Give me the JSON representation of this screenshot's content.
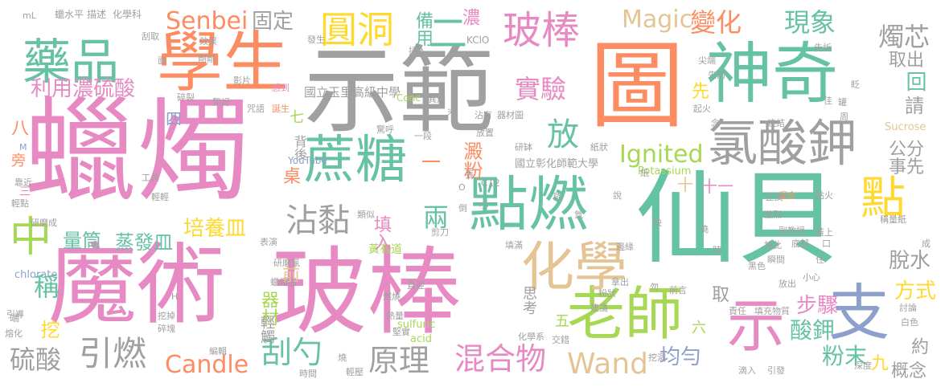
{
  "palette": {
    "gray": "#a0a0a0",
    "pink": "#e78ac3",
    "green": "#66c2a5",
    "orange": "#fc8d62",
    "blue": "#8da0cb",
    "lime": "#a6d854",
    "yellow": "#ffd92f",
    "tan": "#e5c494"
  },
  "words": {
    "lazhu": "蠟燭",
    "shifan": "示範",
    "tu": "圖",
    "mofa": "魔術",
    "bangbang": "玻棒",
    "xianbei": "仙貝",
    "shensqi": "神奇",
    "xuesheng": "學生",
    "laoshi": "老師",
    "yaopin": "藥品",
    "zhetang": "蔗糖",
    "dianran": "點燃",
    "lvsuanjia": "氯酸鉀",
    "huaxue": "化學",
    "yuandong": "圓洞",
    "bangbang2": "玻棒",
    "shi2": "示",
    "zhi": "支",
    "dian": "點",
    "zhong": "中",
    "zhanzhan": "沾黏",
    "liyong": "利用濃硫酸",
    "hunhewu": "混合物",
    "guashao": "刮勺",
    "yuanli": "原理",
    "yinran": "引燃",
    "liusuan": "硫酸",
    "candle": "Candle",
    "wand": "Wand",
    "magic": "Magic",
    "senbei": "Senbei",
    "ignited": "Ignited",
    "bianhua": "變化",
    "xianxiang": "現象",
    "shiyan": "實驗",
    "zhuxin": "燭芯",
    "fang": "放",
    "dianfen": "澱粉",
    "jiemudianfen": "粉末",
    "peiyangmin": "培養皿",
    "zhengfamin": "蒸發皿",
    "liangtong": "量筒",
    "cheng": "稱",
    "wa": "挖",
    "qicai": "器材",
    "qingchu": "輕觸",
    "qian": "前",
    "tianru": "填入",
    "liang": "兩",
    "beihou": "背後",
    "sikao": "思考",
    "qi": "取",
    "buzhou": "步驟",
    "suanjia": "酸鉀",
    "fangshi": "方式",
    "tuoshui": "脫水",
    "gongfen": "公分",
    "shixian": "事先",
    "qing": "請",
    "hui": "回",
    "quchu": "取出",
    "junyun": "均勻",
    "jiu": "九",
    "gainian": "概念",
    "yue": "約",
    "nong": "濃",
    "beiyong": "備用",
    "guding": "固定",
    "yi": "一",
    "er": "二",
    "san": "三",
    "si": "四",
    "wu": "五",
    "liu": "六",
    "qi7": "七",
    "ba": "八",
    "shi10": "十",
    "shiyi": "十一",
    "zhuo": "桌",
    "xian": "先",
    "pang": "旁",
    "school": "國立玉里高級中學",
    "ncue": "國立彰化師範大學",
    "potassium": "Potassium",
    "chlorate": "chlorate",
    "sucrose": "Sucrose",
    "sulfuric": "sulfuric",
    "acid": "acid",
    "kclo": "KClO",
    "c12": "C12",
    "conc": "Conc",
    "youtube": "YouTube",
    "ml": "mL",
    "m": "M",
    "h": "H",
    "o": "O",
    "shuipingshui": "蠟水平",
    "miaoshu": "描述",
    "huaxueke": "化學科",
    "guaqu": "刮取",
    "mian": "面",
    "xiaoguo": "效果",
    "fasheng": "發生",
    "chaoru": "插入",
    "gangang": "剛剛",
    "yingpian": "影片",
    "ganran": "感到",
    "suilie": "碎裂",
    "jingya": "驚訝",
    "zhouyu": "咒語",
    "dansheng": "誕生",
    "xiaxia": "小",
    "yiduan": "一段",
    "yixing": "異形",
    "mo": "末",
    "zhanyou": "沾有",
    "qicaitu": "器材圖",
    "fangzhi": "放置",
    "yanbo": "研缽",
    "zhizhuang": "紙狀",
    "jinghu": "驚呼",
    "gongju": "工具",
    "qingqing": "輕輕",
    "kaojin": "靠近",
    "qingdian": "輕點",
    "yanmocheng": "研磨成",
    "biaoyan": "表演",
    "jianli": "剪刀",
    "leisi": "類似",
    "tian": "填滿",
    "huangyoudao": "黃有道",
    "yanmolv": "研磨氯",
    "lazhutu": "蠟燭圖",
    "zhiwang": "直徑",
    "ranshao": "燃燒",
    "reliang": "熱量",
    "jianshi": "堅實",
    "xuanchu": "挖掉",
    "suibian": "碎塊",
    "duan": "端",
    "ronghua": "熔化",
    "bianji": "編輯",
    "shao": "燒",
    "shijian": "時間",
    "qingjiao": "輕壓",
    "jianyi": "建議",
    "huaxuexi": "化學系",
    "jiaocuo": "交錯",
    "nachu": "拿出",
    "qianyan": "前言",
    "wawdong": "挖洞",
    "dirang": "滴入",
    "yinfa": "引發",
    "shendu": "深度",
    "baise": "白色",
    "taolun": "討論",
    "chengliang": "稱量紙",
    "cheng2": "成",
    "heise": "黑色",
    "zeren": "責任",
    "fangchu": "放出",
    "xiaoxin": "小心",
    "tianchongwu": "填充物質",
    "zhengfanmian": "正反",
    "jidang": "激烈",
    "fujiaoshou": "副教授",
    "gaishang": "蓋上",
    "anzhao": "按此",
    "dibu": "底部",
    "kou": "口",
    "hunhe": "混合",
    "dianhuo": "點火",
    "shunjian": "瞬間",
    "kuai": "快",
    "xiqi": "起火",
    "lianjie": "連結",
    "zhouwei": "周",
    "nian": "念",
    "jianjiao": "尖端",
    "qiande": "先前",
    "gaosu": "告訴",
    "jia": "佳",
    "zha": "眨",
    "zha2": "罐",
    "fenzhuang": "粉狀",
    "bianyuan": "邊緣",
    "jiao": "澆",
    "shuo": "說",
    "zhi2": "紙",
    "zhu": "住",
    "wu2": "勿",
    "shi": "時",
    "yin": "引導",
    "zhang": "張",
    "dao": "倒",
    "jiang": "降",
    "qingqing2": "氫"
  }
}
